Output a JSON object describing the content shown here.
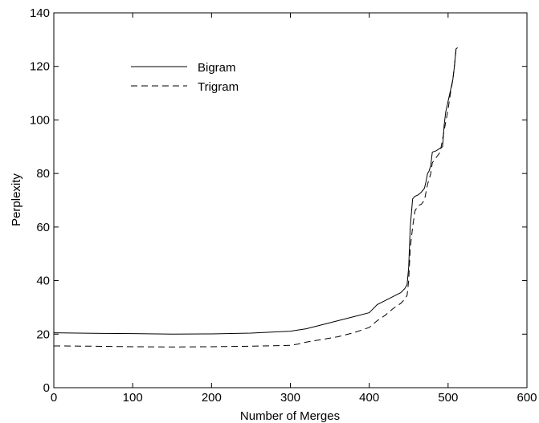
{
  "chart_data": {
    "type": "line",
    "title": "",
    "xlabel": "Number of Merges",
    "ylabel": "Perplexity",
    "xlim": [
      0,
      600
    ],
    "ylim": [
      0,
      140
    ],
    "xticks": [
      0,
      100,
      200,
      300,
      400,
      500,
      600
    ],
    "yticks": [
      0,
      20,
      40,
      60,
      80,
      100,
      120,
      140
    ],
    "grid": false,
    "legend_position": "top-left",
    "series": [
      {
        "name": "Bigram",
        "style": "solid",
        "color": "#000000",
        "x": [
          0,
          50,
          100,
          150,
          200,
          250,
          300,
          320,
          340,
          360,
          380,
          400,
          410,
          420,
          430,
          440,
          445,
          448,
          450,
          452,
          455,
          458,
          462,
          466,
          470,
          472,
          474,
          476,
          478,
          480,
          485,
          490,
          493,
          495,
          497,
          500,
          503,
          506,
          508,
          510,
          512
        ],
        "y": [
          20.5,
          20.3,
          20.2,
          20.0,
          20.1,
          20.4,
          21.1,
          22.0,
          23.5,
          25.0,
          26.5,
          28.0,
          31.0,
          32.5,
          34.0,
          35.5,
          37.0,
          38.5,
          45.0,
          60.0,
          70.5,
          71.5,
          72.0,
          73.0,
          74.5,
          77.0,
          80.0,
          81.0,
          83.0,
          88.0,
          88.5,
          89.5,
          90.0,
          98.0,
          103.0,
          107.0,
          111.0,
          115.0,
          120.0,
          126.5,
          127.0
        ]
      },
      {
        "name": "Trigram",
        "style": "dashed",
        "color": "#000000",
        "x": [
          0,
          50,
          100,
          150,
          200,
          250,
          300,
          310,
          320,
          340,
          360,
          380,
          400,
          410,
          420,
          430,
          440,
          445,
          448,
          450,
          452,
          455,
          458,
          462,
          466,
          470,
          474,
          478,
          480,
          485,
          490,
          495,
          500,
          503,
          506,
          508,
          510,
          512
        ],
        "y": [
          15.6,
          15.5,
          15.3,
          15.2,
          15.3,
          15.5,
          15.8,
          16.3,
          17.0,
          18.0,
          19.0,
          20.5,
          22.5,
          25.0,
          27.0,
          29.5,
          31.5,
          33.0,
          34.5,
          40.0,
          52.0,
          60.0,
          66.0,
          68.0,
          68.5,
          70.0,
          76.0,
          80.0,
          84.0,
          86.0,
          88.0,
          96.0,
          104.0,
          110.0,
          115.0,
          120.0,
          126.0,
          126.5
        ]
      }
    ]
  }
}
